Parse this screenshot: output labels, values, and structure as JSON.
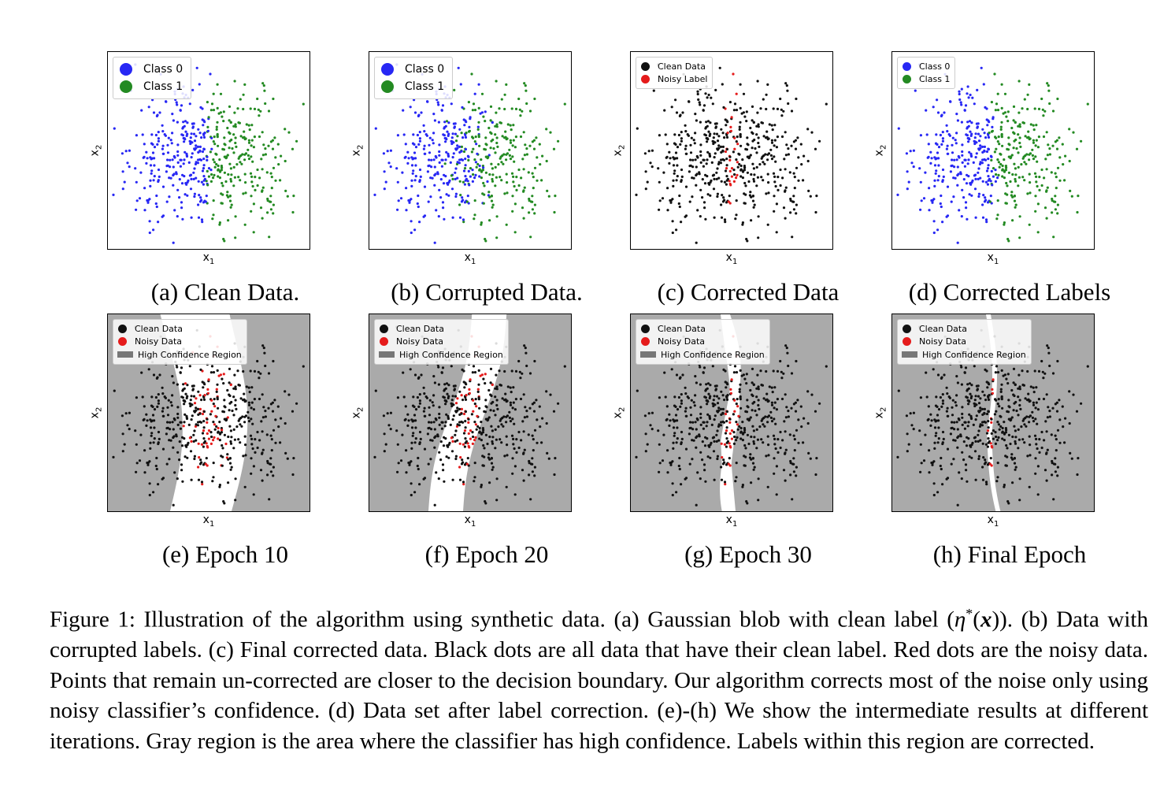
{
  "axis": {
    "xlabel_main": "x",
    "xlabel_sub": "1",
    "ylabel_main": "x",
    "ylabel_sub": "2"
  },
  "colors": {
    "class0": "#2727f4",
    "class1": "#238a22",
    "clean": "#111111",
    "noisy": "#e51b1b",
    "region": "#aaaaaa",
    "legend_region": "#777777"
  },
  "panels": [
    {
      "id": "a",
      "caption": "(a) Clean Data.",
      "legend": [
        "Class 0",
        "Class 1"
      ],
      "legend_markers": [
        "class0",
        "class1"
      ],
      "legend_style": "big"
    },
    {
      "id": "b",
      "caption": "(b) Corrupted Data.",
      "legend": [
        "Class 0",
        "Class 1"
      ],
      "legend_markers": [
        "class0",
        "class1"
      ],
      "legend_style": "big"
    },
    {
      "id": "c",
      "caption": "(c) Corrected Data",
      "legend": [
        "Clean Data",
        "Noisy Label"
      ],
      "legend_markers": [
        "clean",
        "noisy"
      ],
      "legend_style": "small"
    },
    {
      "id": "d",
      "caption": "(d) Corrected Labels",
      "legend": [
        "Class 0",
        "Class 1"
      ],
      "legend_markers": [
        "class0",
        "class1"
      ],
      "legend_style": "small"
    },
    {
      "id": "e",
      "caption": "(e) Epoch 10",
      "legend": [
        "Clean Data",
        "Noisy Data",
        "High Confidence Region"
      ],
      "legend_markers": [
        "clean",
        "noisy",
        "region"
      ],
      "legend_style": "small"
    },
    {
      "id": "f",
      "caption": "(f) Epoch 20",
      "legend": [
        "Clean Data",
        "Noisy Data",
        "High Confidence Region"
      ],
      "legend_markers": [
        "clean",
        "noisy",
        "region"
      ],
      "legend_style": "small"
    },
    {
      "id": "g",
      "caption": "(g) Epoch 30",
      "legend": [
        "Clean Data",
        "Noisy Data",
        "High Confidence Region"
      ],
      "legend_markers": [
        "clean",
        "noisy",
        "region"
      ],
      "legend_style": "small"
    },
    {
      "id": "h",
      "caption": "(h) Final Epoch",
      "legend": [
        "Clean Data",
        "Noisy Data",
        "High Confidence Region"
      ],
      "legend_markers": [
        "clean",
        "noisy",
        "region"
      ],
      "legend_style": "small"
    }
  ],
  "figure_caption": {
    "label": "Figure 1:",
    "text1": " Illustration of the algorithm using synthetic data. (a) Gaussian blob with clean label (",
    "eta": "η",
    "star": "*",
    "paren_x": "(",
    "x": "x",
    "close": "))",
    "text2": ". (b) Data with corrupted labels. (c) Final corrected data. Black dots are all data that have their clean label. Red dots are the noisy data. Points that remain un-corrected are closer to the decision boundary. Our algorithm corrects most of the noise only using noisy classifier’s confidence. (d) Data set after label correction. (e)-(h) We show the intermediate results at different iterations. Gray region is the area where the classifier has high confidence. Labels within this region are corrected."
  }
}
